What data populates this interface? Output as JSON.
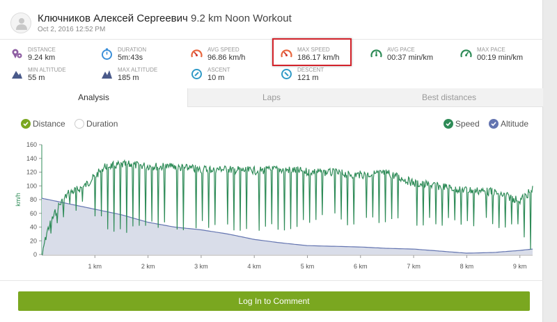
{
  "header": {
    "athlete_name": "Ключников Алексей Сергеевич",
    "activity_title": "9.2 km Noon Workout",
    "date": "Oct 2, 2016 12:52 PM"
  },
  "stats": [
    {
      "label": "DISTANCE",
      "value": "9.24 km",
      "icon": "distance-pin-icon",
      "color": "#8e5ea2"
    },
    {
      "label": "DURATION",
      "value": "5m:43s",
      "icon": "stopwatch-icon",
      "color": "#3b8fd9"
    },
    {
      "label": "AVG SPEED",
      "value": "96.86 km/h",
      "icon": "speedometer-icon",
      "color": "#e8663d"
    },
    {
      "label": "MAX SPEED",
      "value": "186.17 km/h",
      "icon": "speedometer-icon",
      "color": "#e8663d"
    },
    {
      "label": "AVG PACE",
      "value": "00:37 min/km",
      "icon": "pace-gauge-icon",
      "color": "#2e8b57"
    },
    {
      "label": "MAX PACE",
      "value": "00:19 min/km",
      "icon": "pace-gauge-icon",
      "color": "#2e8b57"
    },
    {
      "label": "MIN ALTITUDE",
      "value": "55 m",
      "icon": "mountain-icon",
      "color": "#4a5a8a"
    },
    {
      "label": "MAX ALTITUDE",
      "value": "185 m",
      "icon": "mountain-icon",
      "color": "#4a5a8a"
    },
    {
      "label": "ASCENT",
      "value": "10 m",
      "icon": "ascent-compass-icon",
      "color": "#2f9ac7"
    },
    {
      "label": "DESCENT",
      "value": "121 m",
      "icon": "descent-compass-icon",
      "color": "#2f9ac7"
    }
  ],
  "tabs": [
    {
      "label": "Analysis",
      "active": true
    },
    {
      "label": "Laps",
      "active": false
    },
    {
      "label": "Best distances",
      "active": false
    }
  ],
  "x_axis_options": [
    {
      "label": "Distance",
      "checked": true
    },
    {
      "label": "Duration",
      "checked": false
    }
  ],
  "series_toggles": [
    {
      "label": "Speed",
      "checked": true,
      "color": "#2e8b57"
    },
    {
      "label": "Altitude",
      "checked": true,
      "color": "#6374b0"
    }
  ],
  "chart_data": {
    "type": "line",
    "x_unit": "km",
    "x_ticks": [
      "1 km",
      "2 km",
      "3 km",
      "4 km",
      "5 km",
      "6 km",
      "7 km",
      "8 km",
      "9 km"
    ],
    "y_label": "km/h",
    "y_ticks": [
      "0",
      "20",
      "40",
      "60",
      "80",
      "100",
      "120",
      "140",
      "160"
    ],
    "ylim": [
      0,
      160
    ],
    "xlim": [
      0,
      9.24
    ],
    "speed_envelope": {
      "name": "Speed",
      "color": "#2e8b57",
      "x": [
        0.0,
        0.1,
        0.3,
        0.5,
        0.8,
        1.2,
        1.6,
        2.0,
        2.5,
        3.0,
        3.5,
        4.0,
        4.5,
        5.0,
        5.5,
        6.0,
        6.5,
        7.0,
        7.5,
        8.0,
        8.5,
        9.0,
        9.24
      ],
      "peak": [
        0,
        40,
        75,
        95,
        105,
        135,
        137,
        135,
        133,
        130,
        130,
        128,
        130,
        127,
        125,
        122,
        125,
        110,
        105,
        100,
        97,
        85,
        100
      ],
      "trough": [
        0,
        20,
        40,
        60,
        65,
        35,
        30,
        35,
        30,
        35,
        30,
        30,
        30,
        40,
        45,
        40,
        45,
        40,
        40,
        38,
        40,
        30,
        0
      ]
    },
    "altitude": {
      "name": "Altitude",
      "color": "#6374b0",
      "fill": "#d9dde9",
      "x": [
        0.0,
        0.5,
        1.0,
        1.5,
        2.0,
        2.5,
        3.0,
        3.5,
        4.0,
        4.5,
        5.0,
        5.5,
        6.0,
        6.5,
        7.0,
        7.5,
        8.0,
        8.5,
        9.0,
        9.24
      ],
      "values": [
        82,
        74,
        66,
        58,
        47,
        40,
        36,
        30,
        22,
        17,
        13,
        12,
        11,
        9,
        8,
        5,
        2,
        3,
        6,
        8
      ]
    }
  },
  "comment_button": {
    "label": "Log In to Comment"
  }
}
